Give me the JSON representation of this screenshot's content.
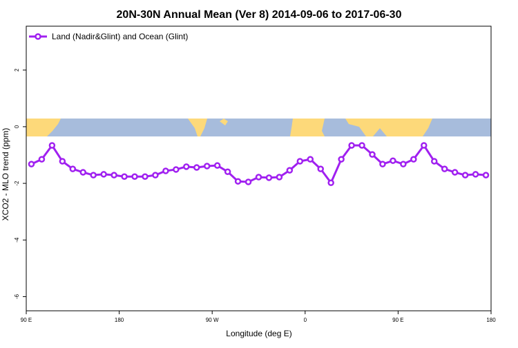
{
  "chart_data": {
    "type": "line",
    "title": "20N-30N Annual Mean (Ver 8)   2014-09-06 to 2017-06-30",
    "x_label": "Longitude (deg E)",
    "y_label": "XCO2 - MLO trend (ppm)",
    "x": [
      95,
      105,
      115,
      125,
      135,
      145,
      155,
      165,
      175,
      185,
      195,
      205,
      215,
      225,
      235,
      245,
      255,
      265,
      275,
      285,
      295,
      305,
      315,
      325,
      335,
      345,
      355,
      365,
      375,
      385,
      395,
      405,
      415,
      425,
      435,
      445,
      455,
      465,
      475,
      485,
      495,
      505,
      515,
      525,
      535
    ],
    "series": [
      {
        "name": "Land (Nadir&Glint) and Ocean (Glint)",
        "color": "#a020f0",
        "values": [
          -1.32,
          -1.15,
          -0.66,
          -1.22,
          -1.49,
          -1.61,
          -1.71,
          -1.68,
          -1.71,
          -1.76,
          -1.76,
          -1.76,
          -1.71,
          -1.56,
          -1.51,
          -1.41,
          -1.44,
          -1.39,
          -1.37,
          -1.59,
          -1.93,
          -1.95,
          -1.78,
          -1.8,
          -1.78,
          -1.54,
          -1.22,
          -1.15,
          -1.49,
          -1.98,
          -1.15,
          -0.66,
          -0.66,
          -0.98,
          -1.32,
          -1.2,
          -1.32,
          -1.15,
          -0.66,
          -1.22,
          -1.49,
          -1.61,
          -1.71,
          -1.68,
          -1.71
        ]
      }
    ],
    "xlim": [
      90,
      540
    ],
    "ylim": [
      -6.5,
      3.55
    ],
    "xticks": [
      {
        "value": 90,
        "label": "90 E"
      },
      180,
      {
        "value": 270,
        "label": "90 W"
      },
      {
        "value": 360,
        "label": "0"
      },
      {
        "value": 450,
        "label": "90 E"
      },
      {
        "value": 540,
        "label": "180"
      }
    ],
    "yticks": [
      2,
      0,
      -2,
      -4,
      -6
    ],
    "legend": "top-left"
  }
}
